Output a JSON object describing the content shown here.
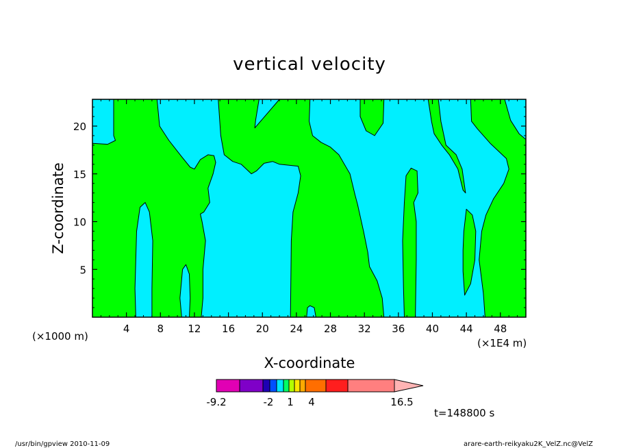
{
  "chart_data": {
    "type": "contour",
    "title": "vertical velocity",
    "xlabel": "X-coordinate",
    "ylabel": "Z-coordinate",
    "x_ticks": [
      4,
      8,
      12,
      16,
      20,
      24,
      28,
      32,
      36,
      40,
      44,
      48
    ],
    "y_ticks": [
      5,
      10,
      15,
      20
    ],
    "xlim": [
      0,
      51
    ],
    "ylim": [
      0,
      22.8
    ],
    "x_unit_label": "(×1000 m)",
    "x_scale_label": "(×1E4 m)",
    "grid": false,
    "legend": "bottom",
    "colorbar": {
      "colors": [
        "#e100b4",
        "#7f00c8",
        "#1e00b4",
        "#0050ff",
        "#00e6ff",
        "#00ff64",
        "#b4ff00",
        "#ffe600",
        "#ffaa00",
        "#ff6e00",
        "#ff1e1e",
        "#ff7f7f",
        "#ffb4b4"
      ],
      "tick_labels": [
        "-9.2",
        "-2",
        "1",
        "4",
        "16.5"
      ]
    },
    "field_colors": {
      "upward": "#00ff00",
      "downward": "#00efff"
    },
    "upward_regions": [
      [
        [
          2.5,
          22.8
        ],
        [
          2.5,
          19
        ],
        [
          2.7,
          18.5
        ],
        [
          1.8,
          18.1
        ],
        [
          0,
          18.2
        ],
        [
          0,
          0
        ],
        [
          5.1,
          0
        ],
        [
          5.0,
          3
        ],
        [
          5.2,
          9
        ],
        [
          5.6,
          11.5
        ],
        [
          6.2,
          12.0
        ],
        [
          6.7,
          11.0
        ],
        [
          7.1,
          8
        ],
        [
          7.0,
          3
        ],
        [
          7.0,
          0
        ],
        [
          10.5,
          0
        ],
        [
          10.3,
          2
        ],
        [
          10.6,
          5
        ],
        [
          11.0,
          5.5
        ],
        [
          11.4,
          4.5
        ],
        [
          11.5,
          2
        ],
        [
          11.4,
          0
        ],
        [
          12.8,
          0
        ],
        [
          13.0,
          2
        ],
        [
          13.0,
          5
        ],
        [
          13.3,
          8
        ],
        [
          12.9,
          10
        ],
        [
          12.7,
          10.8
        ],
        [
          13.1,
          11.0
        ],
        [
          13.8,
          12.0
        ],
        [
          13.6,
          13.5
        ],
        [
          14.2,
          15
        ],
        [
          14.5,
          16.2
        ],
        [
          14.3,
          16.9
        ],
        [
          13.6,
          17.0
        ],
        [
          12.7,
          16.5
        ],
        [
          12.0,
          15.5
        ],
        [
          11.5,
          15.7
        ],
        [
          10.5,
          16.8
        ],
        [
          9.0,
          18.5
        ],
        [
          7.9,
          20
        ],
        [
          7.6,
          22.8
        ]
      ],
      [
        [
          14.8,
          22.8
        ],
        [
          15.1,
          19
        ],
        [
          15.5,
          17
        ],
        [
          16.5,
          16.3
        ],
        [
          17.5,
          16.0
        ],
        [
          18.7,
          15.0
        ],
        [
          19.3,
          15.3
        ],
        [
          20.2,
          16.1
        ],
        [
          21.2,
          16.3
        ],
        [
          22.0,
          16.0
        ],
        [
          24.2,
          15.8
        ],
        [
          24.5,
          14.8
        ],
        [
          24.2,
          13
        ],
        [
          23.6,
          11
        ],
        [
          23.4,
          8
        ],
        [
          23.3,
          0
        ],
        [
          25.2,
          0
        ],
        [
          25.3,
          1
        ],
        [
          25.6,
          1.2
        ],
        [
          26.1,
          1
        ],
        [
          26.3,
          0
        ],
        [
          34.3,
          0
        ],
        [
          34.1,
          2
        ],
        [
          33.5,
          3.8
        ],
        [
          32.6,
          5.3
        ],
        [
          32.4,
          6.8
        ],
        [
          31.9,
          9.0
        ],
        [
          31.2,
          11.8
        ],
        [
          30.9,
          12.8
        ],
        [
          30.3,
          15.0
        ],
        [
          29.0,
          17.0
        ],
        [
          28.0,
          17.8
        ],
        [
          26.9,
          18.3
        ],
        [
          25.9,
          19.0
        ],
        [
          25.5,
          20.5
        ],
        [
          25.6,
          22.8
        ],
        [
          22.0,
          22.8
        ],
        [
          19.1,
          19.8
        ],
        [
          19.2,
          20.6
        ],
        [
          19.6,
          22.8
        ]
      ],
      [
        [
          31.5,
          22.8
        ],
        [
          31.5,
          21.0
        ],
        [
          32.2,
          19.5
        ],
        [
          33.2,
          19.0
        ],
        [
          34.2,
          20.3
        ],
        [
          34.3,
          22.8
        ]
      ],
      [
        [
          36.7,
          0
        ],
        [
          36.6,
          3
        ],
        [
          36.5,
          8
        ],
        [
          36.7,
          12
        ],
        [
          36.9,
          14.8
        ],
        [
          37.5,
          15.6
        ],
        [
          38.2,
          15.3
        ],
        [
          38.3,
          13
        ],
        [
          37.8,
          12
        ],
        [
          38.1,
          10
        ],
        [
          38.1,
          6
        ],
        [
          38.0,
          0
        ]
      ],
      [
        [
          39.5,
          22.8
        ],
        [
          39.9,
          20.5
        ],
        [
          40.2,
          19.2
        ],
        [
          41.1,
          18.0
        ],
        [
          42.0,
          17.0
        ],
        [
          43.0,
          15.5
        ],
        [
          43.6,
          13.3
        ],
        [
          43.9,
          13.0
        ],
        [
          43.5,
          15.5
        ],
        [
          42.8,
          17.0
        ],
        [
          41.6,
          18.0
        ],
        [
          41.0,
          20.5
        ],
        [
          40.7,
          22.8
        ]
      ],
      [
        [
          44.5,
          22.8
        ],
        [
          44.6,
          20.5
        ],
        [
          45.3,
          19.7
        ],
        [
          46.8,
          18.2
        ],
        [
          48.7,
          16.6
        ],
        [
          49.0,
          15.5
        ],
        [
          48.4,
          14.0
        ],
        [
          47.2,
          12.4
        ],
        [
          46.3,
          10.7
        ],
        [
          45.8,
          9.0
        ],
        [
          45.5,
          6.0
        ],
        [
          46.0,
          2.5
        ],
        [
          46.2,
          0
        ],
        [
          51,
          0
        ],
        [
          51,
          18.6
        ],
        [
          50.2,
          19.2
        ],
        [
          49.2,
          20.6
        ],
        [
          48.5,
          22.8
        ]
      ],
      [
        [
          44.0,
          11.3
        ],
        [
          44.7,
          10.7
        ],
        [
          45.1,
          9.0
        ],
        [
          45.0,
          6.0
        ],
        [
          44.5,
          3.5
        ],
        [
          43.8,
          2.3
        ],
        [
          43.6,
          4.8
        ],
        [
          43.6,
          7.0
        ],
        [
          43.7,
          9.0
        ]
      ]
    ],
    "valid_time_label": "t=148800 s",
    "footer_left": "/usr/bin/gpview 2010-11-09",
    "footer_right": "arare-earth-reikyaku2K_VelZ.nc@VelZ"
  }
}
